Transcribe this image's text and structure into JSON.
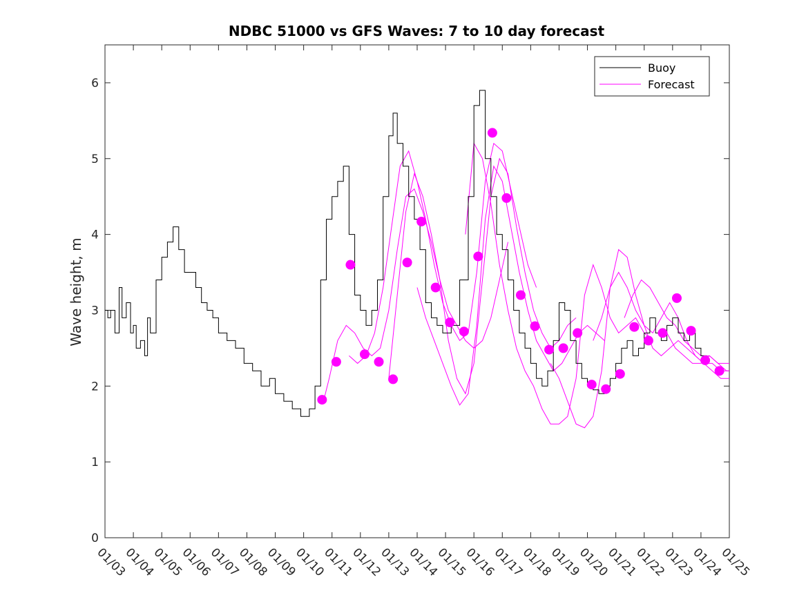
{
  "chart_data": {
    "type": "line",
    "title": "NDBC 51000 vs GFS Waves: 7 to 10 day forecast",
    "xlabel": "",
    "ylabel": "Wave height, m",
    "xlim": [
      0,
      22
    ],
    "ylim": [
      0,
      6.5
    ],
    "yticks": [
      0,
      1,
      2,
      3,
      4,
      5,
      6
    ],
    "xtick_labels": [
      "01/03",
      "01/04",
      "01/05",
      "01/06",
      "01/07",
      "01/08",
      "01/09",
      "01/10",
      "01/11",
      "01/12",
      "01/13",
      "01/14",
      "01/15",
      "01/16",
      "01/17",
      "01/18",
      "01/19",
      "01/20",
      "01/21",
      "01/22",
      "01/23",
      "01/24",
      "01/25"
    ],
    "legend": {
      "location": "top-right",
      "entries": [
        "Buoy",
        "Forecast"
      ]
    },
    "colors": {
      "buoy": "#000000",
      "forecast": "#ff00ff"
    },
    "buoy": {
      "name": "Buoy",
      "x": [
        0,
        0.1,
        0.2,
        0.35,
        0.5,
        0.6,
        0.75,
        0.9,
        1.0,
        1.1,
        1.25,
        1.4,
        1.5,
        1.6,
        1.8,
        2.0,
        2.2,
        2.4,
        2.6,
        2.8,
        3.0,
        3.2,
        3.4,
        3.6,
        3.8,
        4.0,
        4.3,
        4.6,
        4.9,
        5.2,
        5.5,
        5.8,
        6.0,
        6.3,
        6.6,
        6.9,
        7.2,
        7.4,
        7.6,
        7.8,
        8.0,
        8.2,
        8.4,
        8.6,
        8.8,
        9.0,
        9.2,
        9.4,
        9.6,
        9.8,
        10.0,
        10.15,
        10.3,
        10.5,
        10.7,
        10.9,
        11.1,
        11.3,
        11.5,
        11.7,
        11.9,
        12.2,
        12.5,
        12.8,
        13.0,
        13.2,
        13.4,
        13.6,
        13.8,
        14.0,
        14.2,
        14.4,
        14.6,
        14.8,
        15.0,
        15.2,
        15.4,
        15.6,
        15.8,
        16.0,
        16.2,
        16.4,
        16.6,
        16.8,
        17.0,
        17.2,
        17.4,
        17.6,
        17.8,
        18.0,
        18.2,
        18.4,
        18.6,
        18.8,
        19.0,
        19.2,
        19.4,
        19.6,
        19.8,
        20.0,
        20.2,
        20.4,
        20.6,
        20.8,
        21.0,
        21.2
      ],
      "y": [
        3.0,
        2.9,
        3.0,
        2.7,
        3.3,
        2.9,
        3.1,
        2.7,
        2.8,
        2.5,
        2.6,
        2.4,
        2.9,
        2.7,
        3.4,
        3.7,
        3.9,
        4.1,
        3.8,
        3.5,
        3.5,
        3.3,
        3.1,
        3.0,
        2.9,
        2.7,
        2.6,
        2.5,
        2.3,
        2.2,
        2.0,
        2.1,
        1.9,
        1.8,
        1.7,
        1.6,
        1.7,
        2.0,
        3.4,
        4.2,
        4.5,
        4.7,
        4.9,
        4.0,
        3.2,
        3.0,
        2.8,
        3.0,
        3.4,
        4.5,
        5.3,
        5.6,
        5.2,
        4.9,
        4.5,
        4.2,
        3.8,
        3.1,
        2.9,
        2.8,
        2.7,
        2.8,
        3.4,
        4.5,
        5.7,
        5.9,
        5.0,
        4.5,
        4.0,
        3.8,
        3.4,
        3.0,
        2.7,
        2.5,
        2.3,
        2.1,
        2.0,
        2.2,
        2.6,
        3.1,
        3.0,
        2.6,
        2.3,
        2.1,
        2.0,
        1.95,
        1.9,
        2.0,
        2.1,
        2.3,
        2.5,
        2.6,
        2.4,
        2.5,
        2.7,
        2.9,
        2.7,
        2.6,
        2.8,
        2.9,
        2.7,
        2.6,
        2.7,
        2.5,
        2.4,
        2.4
      ]
    },
    "forecast_lines": [
      {
        "x": [
          7.7,
          7.9,
          8.2,
          8.5,
          8.8,
          9.1,
          9.4,
          9.7,
          10.0,
          10.3,
          10.6,
          10.9,
          11.2,
          11.5,
          11.8,
          12.1,
          12.4,
          12.7,
          13.0,
          13.3,
          13.6,
          13.9,
          14.2
        ],
        "y": [
          1.8,
          2.1,
          2.6,
          2.8,
          2.7,
          2.5,
          2.4,
          2.5,
          3.0,
          3.8,
          4.5,
          4.6,
          4.3,
          3.9,
          3.4,
          3.0,
          2.8,
          2.6,
          2.5,
          2.6,
          2.9,
          3.4,
          3.9
        ]
      },
      {
        "x": [
          8.6,
          8.9,
          9.2,
          9.5,
          9.8,
          10.1,
          10.4,
          10.7,
          11.0,
          11.3,
          11.6,
          11.9,
          12.2,
          12.5,
          12.8,
          13.1,
          13.4,
          13.7,
          14.0,
          14.3,
          14.6,
          14.9,
          15.2
        ],
        "y": [
          2.4,
          2.3,
          2.4,
          2.7,
          3.3,
          4.1,
          4.9,
          5.1,
          4.7,
          4.2,
          3.6,
          3.1,
          2.8,
          2.6,
          2.7,
          3.5,
          4.7,
          5.2,
          5.1,
          4.6,
          4.1,
          3.6,
          3.3
        ]
      },
      {
        "x": [
          10.0,
          10.3,
          10.6,
          10.9,
          11.2,
          11.5,
          11.8,
          12.1,
          12.4,
          12.7,
          13.0,
          13.3,
          13.6,
          13.9,
          14.2,
          14.5,
          14.8,
          15.1,
          15.4,
          15.7,
          16.0,
          16.3,
          16.6
        ],
        "y": [
          2.1,
          3.2,
          4.3,
          4.8,
          4.5,
          4.0,
          3.4,
          2.6,
          2.1,
          1.9,
          2.3,
          3.4,
          4.5,
          5.0,
          4.8,
          4.1,
          3.5,
          3.0,
          2.7,
          2.5,
          2.6,
          2.8,
          2.9
        ]
      },
      {
        "x": [
          11.0,
          11.3,
          11.6,
          11.9,
          12.2,
          12.5,
          12.8,
          13.1,
          13.4,
          13.7,
          14.0,
          14.3,
          14.6,
          14.9,
          15.2,
          15.5,
          15.8,
          16.1,
          16.4,
          16.7,
          17.0,
          17.3,
          17.6
        ],
        "y": [
          3.3,
          2.9,
          2.6,
          2.3,
          2.0,
          1.75,
          1.9,
          2.8,
          4.2,
          4.9,
          4.7,
          4.1,
          3.5,
          3.0,
          2.6,
          2.4,
          2.2,
          2.3,
          2.5,
          2.7,
          2.8,
          2.7,
          2.6
        ]
      },
      {
        "x": [
          12.7,
          13.0,
          13.3,
          13.6,
          13.9,
          14.2,
          14.5,
          14.8,
          15.1,
          15.4,
          15.7,
          16.0,
          16.3,
          16.6,
          16.9,
          17.2,
          17.5,
          17.8,
          18.1,
          18.4,
          18.7,
          19.0,
          19.3
        ],
        "y": [
          4.0,
          5.2,
          5.0,
          4.4,
          3.6,
          3.0,
          2.5,
          2.2,
          2.0,
          1.7,
          1.5,
          1.5,
          1.6,
          2.1,
          3.2,
          3.6,
          3.3,
          2.9,
          2.7,
          2.8,
          2.9,
          2.7,
          2.6
        ]
      },
      {
        "x": [
          15.7,
          16.0,
          16.3,
          16.6,
          16.9,
          17.2,
          17.5,
          17.8,
          18.1,
          18.4,
          18.7,
          19.0,
          19.3,
          19.6,
          19.9,
          20.2,
          20.5,
          20.8,
          21.1,
          21.4,
          21.7,
          22.0
        ],
        "y": [
          2.3,
          2.1,
          1.8,
          1.5,
          1.45,
          1.6,
          2.2,
          3.3,
          3.8,
          3.7,
          3.2,
          2.8,
          2.5,
          2.4,
          2.5,
          2.6,
          2.5,
          2.4,
          2.3,
          2.2,
          2.1,
          2.1
        ]
      },
      {
        "x": [
          17.2,
          17.5,
          17.8,
          18.1,
          18.4,
          18.7,
          19.0,
          19.3,
          19.6,
          19.9,
          20.2,
          20.5,
          20.8,
          21.1,
          21.4,
          21.7,
          22.0
        ],
        "y": [
          2.6,
          2.9,
          3.3,
          3.5,
          3.3,
          3.0,
          2.8,
          2.7,
          2.9,
          3.1,
          2.9,
          2.6,
          2.4,
          2.3,
          2.3,
          2.2,
          2.2
        ]
      },
      {
        "x": [
          18.3,
          18.6,
          18.9,
          19.2,
          19.5,
          19.8,
          20.1,
          20.4,
          20.7,
          21.0,
          21.3,
          21.6,
          21.9,
          22.0
        ],
        "y": [
          2.9,
          3.2,
          3.4,
          3.3,
          3.1,
          2.9,
          2.8,
          2.6,
          2.5,
          2.4,
          2.4,
          2.3,
          2.3,
          2.3
        ]
      },
      {
        "x": [
          19.8,
          20.1,
          20.4,
          20.7,
          21.0,
          21.3,
          21.6,
          21.9,
          22.0
        ],
        "y": [
          2.7,
          2.5,
          2.4,
          2.3,
          2.3,
          2.4,
          2.3,
          2.2,
          2.2
        ]
      }
    ],
    "forecast_points": {
      "name": "Forecast",
      "x": [
        7.65,
        8.15,
        8.65,
        9.15,
        9.65,
        10.15,
        10.65,
        11.15,
        11.65,
        12.15,
        12.65,
        13.15,
        13.65,
        14.15,
        14.65,
        15.15,
        15.65,
        16.15,
        16.65,
        17.15,
        17.65,
        18.15,
        18.65,
        19.15,
        19.65,
        20.15,
        20.65,
        21.15,
        21.65
      ],
      "y": [
        1.82,
        2.32,
        3.6,
        2.42,
        2.32,
        2.09,
        3.63,
        4.17,
        3.3,
        2.84,
        2.72,
        3.71,
        5.34,
        4.48,
        3.2,
        2.79,
        2.48,
        2.5,
        2.7,
        2.02,
        1.96,
        2.16,
        2.78,
        2.6,
        2.7,
        3.16,
        2.73,
        2.34,
        2.2
      ]
    }
  }
}
